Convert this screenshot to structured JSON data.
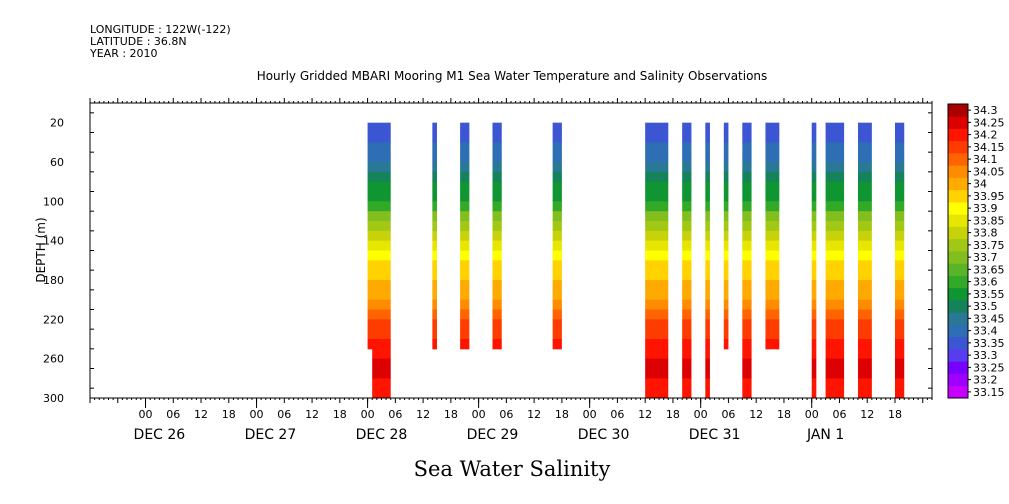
{
  "header": {
    "longitude": "LONGITUDE : 122W(-122)",
    "latitude": "LATITUDE : 36.8N",
    "year": "YEAR : 2010"
  },
  "chart_data": {
    "type": "heatmap",
    "title": "Hourly Gridded MBARI Mooring M1 Sea Water Temperature and Salinity Observations",
    "xlabel": "Sea Water Salinity",
    "ylabel": "DEPTH (m)",
    "x_unit": "hours since DEC 26 00:00",
    "xlim": [
      -12,
      170
    ],
    "ylim": [
      300,
      0
    ],
    "x_tick_labels": [
      "00",
      "06",
      "12",
      "18",
      "00",
      "06",
      "12",
      "18",
      "00",
      "06",
      "12",
      "18",
      "00",
      "06",
      "12",
      "18",
      "00",
      "06",
      "12",
      "18",
      "00",
      "06",
      "12",
      "18",
      "00",
      "06",
      "12",
      "18"
    ],
    "date_labels": [
      "DEC 26",
      "DEC 27",
      "DEC 28",
      "DEC 29",
      "DEC 30",
      "DEC 31",
      "JAN  1"
    ],
    "y_ticks": [
      20,
      60,
      100,
      140,
      180,
      220,
      260,
      300
    ],
    "colorbar": {
      "levels": [
        33.15,
        33.2,
        33.25,
        33.3,
        33.35,
        33.4,
        33.45,
        33.5,
        33.55,
        33.6,
        33.65,
        33.7,
        33.75,
        33.8,
        33.85,
        33.9,
        33.95,
        34,
        34.05,
        34.1,
        34.15,
        34.2,
        34.25,
        34.3
      ],
      "labels": [
        "33.15",
        "33.2",
        "33.25",
        "33.3",
        "33.35",
        "33.4",
        "33.45",
        "33.5",
        "33.55",
        "33.6",
        "33.65",
        "33.7",
        "33.75",
        "33.8",
        "33.85",
        "33.9",
        "33.95",
        "34",
        "34.05",
        "34.1",
        "34.15",
        "34.2",
        "34.25",
        "34.3"
      ],
      "colors": [
        "#c800ff",
        "#a000ff",
        "#7800ff",
        "#5a3cf0",
        "#3c55d2",
        "#2d6eb4",
        "#287896",
        "#14825a",
        "#0f9632",
        "#32aa28",
        "#5ab428",
        "#82be1e",
        "#a0c814",
        "#c8d20a",
        "#e6e600",
        "#ffff00",
        "#ffd200",
        "#ffaa00",
        "#ff8c00",
        "#ff6400",
        "#ff3c00",
        "#ff1400",
        "#dc0000",
        "#aa0000"
      ]
    },
    "observation_windows": [
      {
        "start": 48,
        "end": 53,
        "bottom": 250,
        "deep": {
          "start": 49,
          "end": 53,
          "bottom": 300
        }
      },
      {
        "start": 62,
        "end": 63,
        "bottom": 250
      },
      {
        "start": 68,
        "end": 70,
        "bottom": 250
      },
      {
        "start": 75,
        "end": 77,
        "bottom": 250
      },
      {
        "start": 88,
        "end": 90,
        "bottom": 250
      },
      {
        "start": 108,
        "end": 113,
        "bottom": 300
      },
      {
        "start": 116,
        "end": 118,
        "bottom": 300
      },
      {
        "start": 121,
        "end": 122,
        "bottom": 300
      },
      {
        "start": 125,
        "end": 126,
        "bottom": 250
      },
      {
        "start": 129,
        "end": 131,
        "bottom": 300
      },
      {
        "start": 134,
        "end": 137,
        "bottom": 250
      },
      {
        "start": 144,
        "end": 145,
        "bottom": 300
      },
      {
        "start": 147,
        "end": 151,
        "bottom": 300
      },
      {
        "start": 154,
        "end": 157,
        "bottom": 300
      },
      {
        "start": 162,
        "end": 164,
        "bottom": 300
      }
    ],
    "salinity_profile": [
      {
        "depth": 20,
        "value": 33.35
      },
      {
        "depth": 40,
        "value": 33.4
      },
      {
        "depth": 60,
        "value": 33.45
      },
      {
        "depth": 80,
        "value": 33.55
      },
      {
        "depth": 100,
        "value": 33.6
      },
      {
        "depth": 120,
        "value": 33.75
      },
      {
        "depth": 140,
        "value": 33.85
      },
      {
        "depth": 160,
        "value": 33.95
      },
      {
        "depth": 180,
        "value": 34.0
      },
      {
        "depth": 200,
        "value": 34.05
      },
      {
        "depth": 220,
        "value": 34.15
      },
      {
        "depth": 240,
        "value": 34.2
      },
      {
        "depth": 260,
        "value": 34.25
      },
      {
        "depth": 280,
        "value": 34.25
      },
      {
        "depth": 300,
        "value": 34.2
      }
    ]
  }
}
